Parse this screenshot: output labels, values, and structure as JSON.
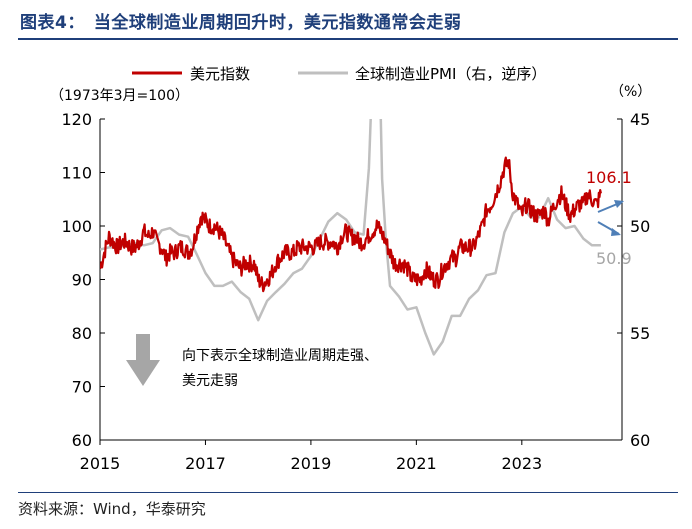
{
  "header": {
    "title": "图表4：　当全球制造业周期回升时，美元指数通常会走弱"
  },
  "footer": {
    "source": "资料来源：Wind，华泰研究"
  },
  "colors": {
    "dxy": "#c00000",
    "pmi": "#bfbfbf",
    "arrow_down": "#a6a6a6",
    "annot_arrow": "#4f7fb7",
    "title": "#1f3f7a"
  },
  "chart_data": {
    "type": "line",
    "title": "",
    "left_axis_label": "（1973年3月=100）",
    "right_axis_label": "（%）",
    "left_ylim": [
      60,
      120
    ],
    "left_ticks": [
      60,
      70,
      80,
      90,
      100,
      110,
      120
    ],
    "right_ylim": [
      60,
      45
    ],
    "right_ticks": [
      45,
      50,
      55,
      60
    ],
    "right_inverted": true,
    "x_ticks": [
      "2015",
      "2017",
      "2019",
      "2021",
      "2023"
    ],
    "x_tick_values": [
      2015,
      2017,
      2019,
      2021,
      2023
    ],
    "xlim": [
      2015,
      2024.9
    ],
    "grid": false,
    "legend_placement": "top",
    "annotation_text_1": "向下表示全球制造业周期走强、",
    "annotation_text_2": "美元走弱",
    "end_label_dxy": "106.1",
    "end_label_pmi": "50.9",
    "series": [
      {
        "name": "美元指数",
        "axis": "left",
        "x": [
          2015.0,
          2015.08,
          2015.17,
          2015.25,
          2015.33,
          2015.42,
          2015.5,
          2015.58,
          2015.67,
          2015.75,
          2015.83,
          2015.92,
          2016.0,
          2016.08,
          2016.17,
          2016.25,
          2016.33,
          2016.42,
          2016.5,
          2016.58,
          2016.67,
          2016.75,
          2016.83,
          2016.92,
          2017.0,
          2017.08,
          2017.17,
          2017.25,
          2017.33,
          2017.42,
          2017.5,
          2017.58,
          2017.67,
          2017.75,
          2017.83,
          2017.92,
          2018.0,
          2018.08,
          2018.17,
          2018.25,
          2018.33,
          2018.42,
          2018.5,
          2018.58,
          2018.67,
          2018.75,
          2018.83,
          2018.92,
          2019.0,
          2019.08,
          2019.17,
          2019.25,
          2019.33,
          2019.42,
          2019.5,
          2019.58,
          2019.67,
          2019.75,
          2019.83,
          2019.92,
          2020.0,
          2020.08,
          2020.17,
          2020.25,
          2020.33,
          2020.42,
          2020.5,
          2020.58,
          2020.67,
          2020.75,
          2020.83,
          2020.92,
          2021.0,
          2021.08,
          2021.17,
          2021.25,
          2021.33,
          2021.42,
          2021.5,
          2021.58,
          2021.67,
          2021.75,
          2021.83,
          2021.92,
          2022.0,
          2022.08,
          2022.17,
          2022.25,
          2022.33,
          2022.42,
          2022.5,
          2022.58,
          2022.67,
          2022.75,
          2022.83,
          2022.92,
          2023.0,
          2023.08,
          2023.17,
          2023.25,
          2023.33,
          2023.42,
          2023.5,
          2023.58,
          2023.67,
          2023.75,
          2023.83,
          2023.92,
          2024.0,
          2024.08,
          2024.17,
          2024.25,
          2024.33,
          2024.42,
          2024.5
        ],
        "values": [
          92,
          95,
          98,
          97,
          96,
          97,
          97,
          96,
          96,
          97,
          99,
          98,
          99,
          97,
          96,
          94,
          95,
          95,
          96,
          96,
          95,
          96,
          99,
          102,
          101,
          100,
          100,
          99,
          98,
          96,
          94,
          93,
          92,
          93,
          93,
          93,
          90,
          89,
          90,
          91,
          93,
          94,
          95,
          95,
          95,
          96,
          96,
          96,
          96,
          96,
          97,
          97,
          97,
          97,
          96,
          98,
          99,
          98,
          98,
          97,
          97,
          98,
          99,
          100,
          99,
          97,
          95,
          93,
          93,
          93,
          92,
          90,
          90,
          90,
          92,
          91,
          90,
          90,
          92,
          93,
          94,
          94,
          96,
          96,
          96,
          96,
          98,
          100,
          103,
          104,
          106,
          108,
          111,
          112,
          106,
          104,
          102,
          104,
          103,
          102,
          102,
          103,
          101,
          103,
          105,
          106,
          104,
          102,
          103,
          104,
          104,
          106,
          105,
          104,
          106.1
        ]
      },
      {
        "name": "全球制造业PMI（右，逆序）",
        "axis": "right",
        "x": [
          2015.0,
          2015.17,
          2015.33,
          2015.5,
          2015.67,
          2015.83,
          2016.0,
          2016.17,
          2016.33,
          2016.5,
          2016.67,
          2016.83,
          2017.0,
          2017.17,
          2017.33,
          2017.5,
          2017.67,
          2017.83,
          2018.0,
          2018.17,
          2018.33,
          2018.5,
          2018.67,
          2018.83,
          2019.0,
          2019.17,
          2019.33,
          2019.5,
          2019.67,
          2019.83,
          2020.0,
          2020.1,
          2020.2,
          2020.25,
          2020.3,
          2020.35,
          2020.42,
          2020.5,
          2020.67,
          2020.83,
          2021.0,
          2021.17,
          2021.33,
          2021.5,
          2021.67,
          2021.83,
          2022.0,
          2022.17,
          2022.33,
          2022.5,
          2022.67,
          2022.83,
          2023.0,
          2023.17,
          2023.33,
          2023.5,
          2023.67,
          2023.83,
          2024.0,
          2024.17,
          2024.33,
          2024.5
        ],
        "values": [
          51.1,
          51.0,
          51.0,
          50.9,
          50.8,
          50.9,
          50.8,
          50.2,
          50.1,
          50.4,
          50.5,
          51.3,
          52.2,
          52.8,
          52.8,
          52.6,
          53.1,
          53.4,
          54.4,
          53.5,
          53.1,
          52.7,
          52.2,
          52.0,
          51.4,
          50.6,
          49.8,
          49.4,
          49.7,
          50.3,
          50.4,
          47.3,
          40.5,
          39.6,
          42.2,
          47.8,
          50.6,
          52.8,
          53.3,
          53.9,
          53.8,
          55.0,
          56.0,
          55.4,
          54.2,
          54.2,
          53.4,
          53.0,
          52.3,
          52.2,
          50.3,
          49.4,
          49.1,
          49.6,
          49.6,
          48.7,
          49.7,
          50.1,
          50.0,
          50.6,
          50.9,
          50.9
        ]
      }
    ]
  }
}
